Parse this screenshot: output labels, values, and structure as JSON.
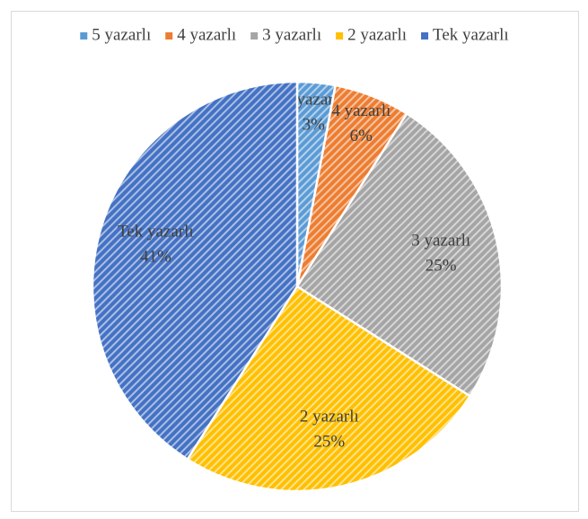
{
  "chart_data": {
    "type": "pie",
    "categories": [
      "5 yazarlı",
      "4 yazarlı",
      "3 yazarlı",
      "2 yazarlı",
      "Tek yazarlı"
    ],
    "values": [
      3,
      6,
      25,
      25,
      41
    ],
    "value_labels": [
      "3%",
      "6%",
      "25%",
      "25%",
      "41%"
    ],
    "colors": [
      "#5b9bd5",
      "#ed7d31",
      "#a5a5a5",
      "#ffc000",
      "#4472c4"
    ],
    "legend": "top"
  }
}
